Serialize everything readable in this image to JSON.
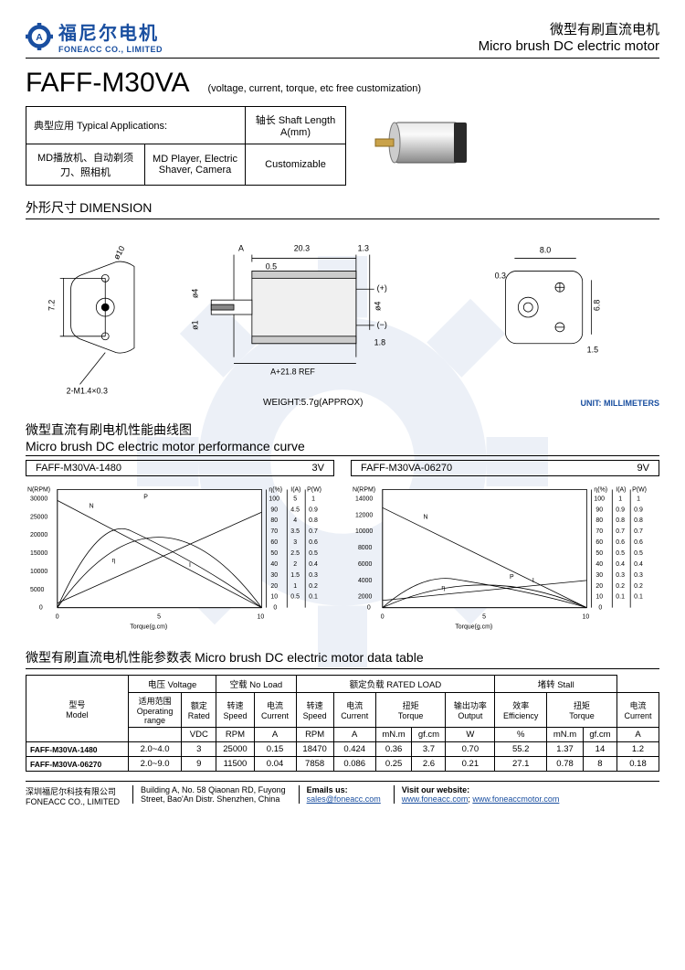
{
  "header": {
    "logo_cn": "福尼尔电机",
    "logo_en": "FONEACC CO., LIMITED",
    "title_cn": "微型有刷直流电机",
    "title_en": "Micro brush DC electric motor"
  },
  "model": "FAFF-M30VA",
  "subtitle": "(voltage, current, torque, etc free customization)",
  "applications": {
    "col1_header": "典型应用 Typical Applications:",
    "col2_header": "轴长 Shaft Length A(mm)",
    "apps_cn": "MD播放机、自动剃须刀、照相机",
    "apps_en": "MD Player, Electric Shaver, Camera",
    "shaft": "Customizable"
  },
  "dimension": {
    "title_cn": "外形尺寸",
    "title_en": "DIMENSION",
    "weight": "WEIGHT:5.7g(APPROX)",
    "unit": "UNIT: MILLIMETERS",
    "labels": {
      "A": "A",
      "d20_3": "20.3",
      "d1_3": "1.3",
      "d0_5": "0.5",
      "phi4": "ø4",
      "phi1": "ø1",
      "aref": "A+21.8 REF",
      "d1_8": "1.8",
      "d7_2": "7.2",
      "phi10": "ø10",
      "screw": "2-M1.4×0.3",
      "d8_0": "8.0",
      "d0_3": "0.3",
      "d6_8": "6.8",
      "d1_5": "1.5",
      "plus": "(+)",
      "minus": "(−)"
    }
  },
  "curve": {
    "title_cn": "微型直流有刷电机性能曲线图",
    "title_en": "Micro brush DC electric motor performance curve",
    "left": {
      "model": "FAFF-M30VA-1480",
      "voltage": "3V",
      "n_max": 30000,
      "n_ticks": [
        0,
        5000,
        10000,
        15000,
        20000,
        25000,
        30000
      ],
      "eta_max": 100,
      "i_max": 5,
      "p_max": 1,
      "torque_max": 10,
      "x_label": "Torque(g.cm)",
      "axes_labels": {
        "N": "N(RPM)",
        "eta": "η(%)",
        "I": "I(A)",
        "P": "P(W)"
      },
      "curves": {
        "N": "N",
        "eta": "η",
        "I": "I",
        "P": "P"
      },
      "line_color": "#000000",
      "grid_color": "#999999",
      "bg": "#ffffff"
    },
    "right": {
      "model": "FAFF-M30VA-06270",
      "voltage": "9V",
      "n_max": 14000,
      "n_ticks": [
        0,
        2000,
        4000,
        6000,
        8000,
        10000,
        12000,
        14000
      ],
      "eta_max": 100,
      "i_max": 1,
      "p_max": 1,
      "torque_max": 10,
      "x_label": "Torque(g.cm)",
      "axes_labels": {
        "N": "N(RPM)",
        "eta": "η(%)",
        "I": "I(A)",
        "P": "P(W)"
      },
      "curves": {
        "N": "N",
        "eta": "η",
        "I": "I",
        "P": "P"
      },
      "line_color": "#000000",
      "grid_color": "#999999",
      "bg": "#ffffff"
    }
  },
  "datatable": {
    "title_cn": "微型有刷直流电机性能参数表",
    "title_en": "Micro brush DC electric motor data table",
    "group_headers": {
      "model": "型号\nModel",
      "voltage": "电压 Voltage",
      "noload": "空载 No Load",
      "rated": "额定负载 RATED LOAD",
      "stall": "堵转 Stall"
    },
    "sub_headers": {
      "range": "适用范围\nOperating\nrange",
      "rated_v": "额定\nRated",
      "speed": "转速\nSpeed",
      "current": "电流\nCurrent",
      "torque": "扭矩\nTorque",
      "output": "输出功率\nOutput",
      "eff": "效率\nEfficiency"
    },
    "unit_row": [
      "",
      "VDC",
      "RPM",
      "A",
      "RPM",
      "A",
      "mN.m",
      "gf.cm",
      "W",
      "%",
      "mN.m",
      "gf.cm",
      "A"
    ],
    "rows": [
      [
        "FAFF-M30VA-1480",
        "2.0~4.0",
        "3",
        "25000",
        "0.15",
        "18470",
        "0.424",
        "0.36",
        "3.7",
        "0.70",
        "55.2",
        "1.37",
        "14",
        "1.2"
      ],
      [
        "FAFF-M30VA-06270",
        "2.0~9.0",
        "9",
        "11500",
        "0.04",
        "7858",
        "0.086",
        "0.25",
        "2.6",
        "0.21",
        "27.1",
        "0.78",
        "8",
        "0.18"
      ]
    ]
  },
  "footer": {
    "company_cn": "深圳福尼尔科技有限公司",
    "company_en": "FONEACC CO., LIMITED",
    "addr1": "Building A, No. 58 Qiaonan RD, Fuyong",
    "addr2": "Street, Bao'An Distr. Shenzhen, China",
    "email_label": "Emails us:",
    "email": "sales@foneacc.com",
    "web_label": "Visit our website:",
    "web1": "www.foneacc.com",
    "web2": "www.foneaccmotor.com"
  },
  "colors": {
    "brand": "#1a4fa0",
    "text": "#000000",
    "border": "#000000",
    "bg": "#ffffff"
  }
}
